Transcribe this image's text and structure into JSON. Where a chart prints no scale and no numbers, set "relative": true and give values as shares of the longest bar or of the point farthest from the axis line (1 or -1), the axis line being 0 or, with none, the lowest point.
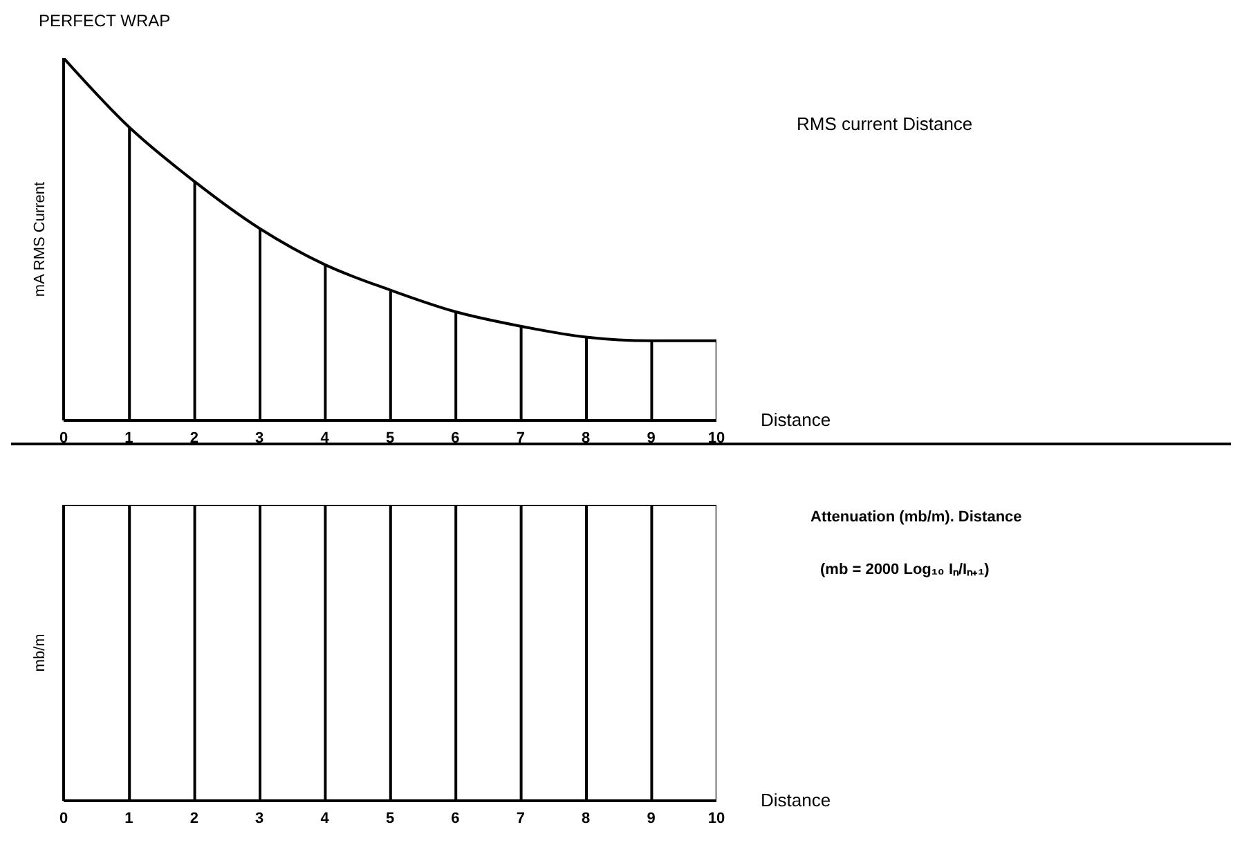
{
  "chart_data": [
    {
      "type": "line",
      "title": "PERFECT WRAP",
      "ylabel": "mA RMS Current",
      "xlabel": "Distance",
      "annotations": [
        "RMS current Distance"
      ],
      "relative": true,
      "x": [
        0,
        1,
        2,
        3,
        4,
        5,
        6,
        7,
        8,
        9,
        10
      ],
      "xlim": [
        0,
        10
      ],
      "xticks": [
        0,
        1,
        2,
        3,
        4,
        5,
        6,
        7,
        8,
        9,
        10
      ],
      "series": [
        {
          "color": "#000000",
          "values": [
            1,
            0.81,
            0.66,
            0.53,
            0.43,
            0.36,
            0.3,
            0.26,
            0.23,
            0.22,
            0.22
          ]
        },
        {
          "type": "bar",
          "color": "#000000",
          "values": [
            null,
            0.81,
            0.66,
            0.53,
            0.43,
            0.36,
            0.3,
            0.26,
            0.23,
            0.22,
            0.22
          ]
        }
      ]
    },
    {
      "type": "line",
      "ylabel": "mb/m",
      "xlabel": "Distance",
      "annotations": [
        "Attenuation (mb/m). Distance",
        "(mb = 2000 Log₁₀ Iₙ/Iₙ₊₁)"
      ],
      "relative": true,
      "x": [
        0,
        1,
        2,
        3,
        4,
        5,
        6,
        7,
        8,
        9,
        10
      ],
      "xlim": [
        0,
        10
      ],
      "xticks": [
        0,
        1,
        2,
        3,
        4,
        5,
        6,
        7,
        8,
        9,
        10
      ],
      "series": [
        {
          "color": "#000000",
          "values": [
            1,
            1,
            1,
            1,
            1,
            1,
            1,
            1,
            1,
            1,
            1
          ]
        },
        {
          "type": "bar",
          "color": "#000000",
          "values": [
            null,
            1,
            1,
            1,
            1,
            1,
            1,
            1,
            1,
            1,
            1
          ]
        }
      ]
    }
  ]
}
